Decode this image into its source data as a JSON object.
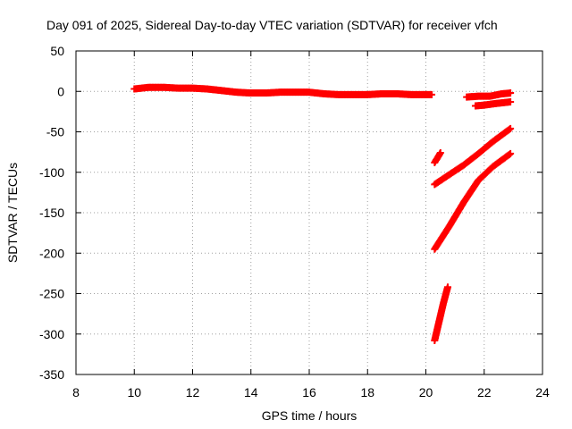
{
  "chart_data": {
    "type": "scatter",
    "title": "Day 091 of 2025, Sidereal Day-to-day VTEC variation (SDTVAR) for receiver vfch",
    "xlabel": "GPS time / hours",
    "ylabel": "SDTVAR / TECUs",
    "xlim": [
      8,
      24
    ],
    "ylim": [
      -350,
      50
    ],
    "xticks": [
      8,
      10,
      12,
      14,
      16,
      18,
      20,
      22,
      24
    ],
    "yticks": [
      50,
      0,
      -50,
      -100,
      -150,
      -200,
      -250,
      -300,
      -350
    ],
    "xtick_labels": [
      "8",
      "10",
      "12",
      "14",
      "16",
      "18",
      "20",
      "22",
      "24"
    ],
    "ytick_labels": [
      "50",
      "0",
      "-50",
      "-100",
      "-150",
      "-200",
      "-250",
      "-300",
      "-350"
    ],
    "grid": true,
    "marker": "plus",
    "color": "#ff0000",
    "series": [
      {
        "x": [
          10.0,
          10.5,
          11.0,
          11.5,
          12.0,
          12.5,
          13.0,
          13.5,
          14.0,
          14.5,
          15.0,
          15.5,
          16.0,
          16.5,
          17.0,
          17.5,
          18.0,
          18.5,
          19.0,
          19.5,
          20.0,
          20.2
        ],
        "y": [
          3,
          5,
          5,
          4,
          4,
          3,
          1,
          -1,
          -2,
          -2,
          -1,
          -1,
          -1,
          -3,
          -4,
          -4,
          -4,
          -3,
          -3,
          -4,
          -4,
          -4
        ]
      },
      {
        "x": [
          21.4,
          21.8,
          22.2,
          22.6,
          22.9
        ],
        "y": [
          -7,
          -6,
          -6,
          -3,
          -2
        ]
      },
      {
        "x": [
          21.7,
          22.0,
          22.4,
          22.9
        ],
        "y": [
          -18,
          -17,
          -15,
          -13
        ]
      },
      {
        "x": [
          20.3,
          20.4,
          20.5
        ],
        "y": [
          -88,
          -82,
          -76
        ]
      },
      {
        "x": [
          20.3,
          20.8,
          21.3,
          21.8,
          22.3,
          22.9
        ],
        "y": [
          -115,
          -103,
          -91,
          -77,
          -62,
          -46
        ]
      },
      {
        "x": [
          20.3,
          20.8,
          21.3,
          21.8,
          22.3,
          22.9
        ],
        "y": [
          -195,
          -167,
          -137,
          -110,
          -93,
          -77
        ]
      },
      {
        "x": [
          20.3,
          20.45,
          20.6,
          20.75
        ],
        "y": [
          -308,
          -285,
          -262,
          -242
        ]
      }
    ]
  }
}
